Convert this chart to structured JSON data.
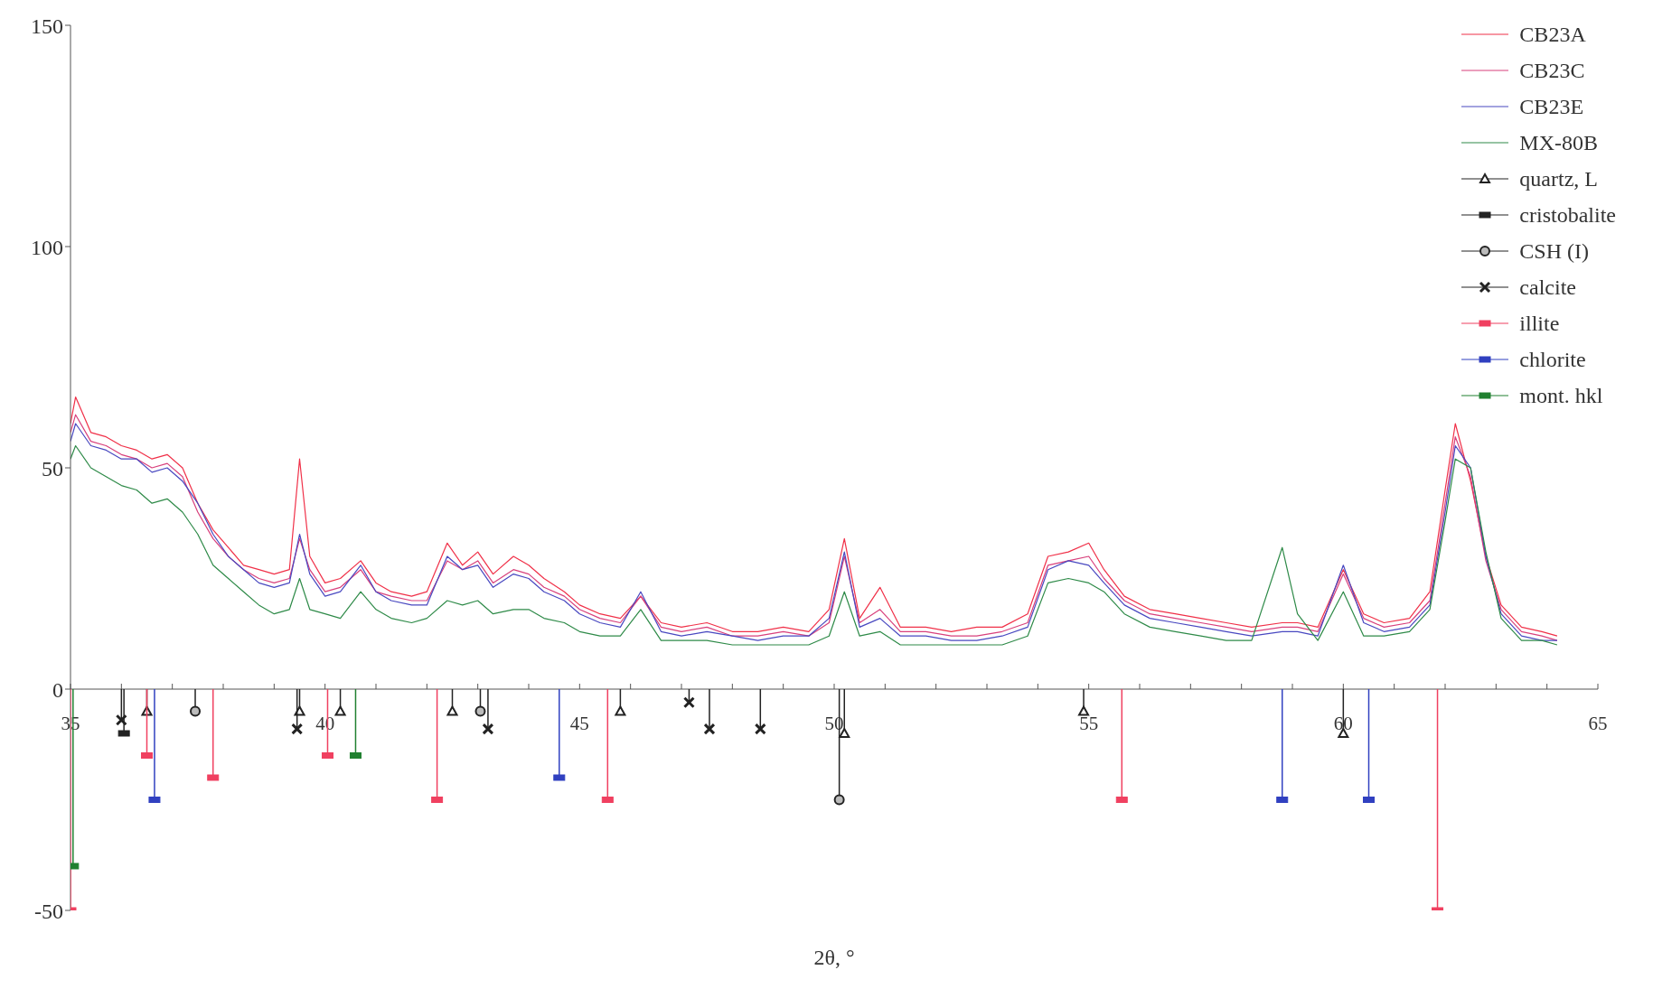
{
  "chart_data": {
    "type": "line",
    "xlabel": "2θ, °",
    "xlim": [
      35,
      65
    ],
    "xticks": [
      35,
      {
        "value": 36,
        "label": null
      },
      {
        "value": 37,
        "label": null
      },
      {
        "value": 38,
        "label": null
      },
      {
        "value": 39,
        "label": null
      },
      40,
      {
        "value": 41,
        "label": null
      },
      {
        "value": 42,
        "label": null
      },
      {
        "value": 43,
        "label": null
      },
      {
        "value": 44,
        "label": null
      },
      45,
      {
        "value": 46,
        "label": null
      },
      {
        "value": 47,
        "label": null
      },
      {
        "value": 48,
        "label": null
      },
      {
        "value": 49,
        "label": null
      },
      50,
      {
        "value": 51,
        "label": null
      },
      {
        "value": 52,
        "label": null
      },
      {
        "value": 53,
        "label": null
      },
      {
        "value": 54,
        "label": null
      },
      55,
      {
        "value": 56,
        "label": null
      },
      {
        "value": 57,
        "label": null
      },
      {
        "value": 58,
        "label": null
      },
      {
        "value": 59,
        "label": null
      },
      60,
      {
        "value": 61,
        "label": null
      },
      {
        "value": 62,
        "label": null
      },
      {
        "value": 63,
        "label": null
      },
      {
        "value": 64,
        "label": null
      },
      65
    ],
    "ylim": [
      -50,
      150
    ],
    "yticks": [
      -50,
      0,
      50,
      100,
      150
    ],
    "grid": false,
    "legend": "top right",
    "line_style": "solid",
    "x": [
      35,
      35.1,
      35.4,
      35.7,
      36,
      36.3,
      36.6,
      36.9,
      37.2,
      37.5,
      37.8,
      38.1,
      38.4,
      38.7,
      39,
      39.3,
      39.5,
      39.7,
      40,
      40.3,
      40.7,
      41,
      41.3,
      41.7,
      42,
      42.4,
      42.7,
      43,
      43.3,
      43.7,
      44,
      44.3,
      44.7,
      45,
      45.4,
      45.8,
      46.2,
      46.6,
      47,
      47.5,
      48,
      48.5,
      49,
      49.5,
      49.9,
      50.2,
      50.5,
      50.9,
      51.3,
      51.8,
      52.3,
      52.8,
      53.3,
      53.8,
      54.2,
      54.6,
      55,
      55.3,
      55.7,
      56.2,
      56.7,
      57.2,
      57.7,
      58.2,
      58.8,
      59.1,
      59.5,
      60,
      60.4,
      60.8,
      61.3,
      61.7,
      62,
      62.2,
      62.5,
      62.8,
      63.1,
      63.5,
      63.9,
      64.2
    ],
    "series": [
      {
        "name": "CB23A",
        "color": "#f03048",
        "values": [
          60,
          66,
          58,
          57,
          55,
          54,
          52,
          53,
          50,
          42,
          36,
          32,
          28,
          27,
          26,
          27,
          52,
          30,
          24,
          25,
          29,
          24,
          22,
          21,
          22,
          33,
          28,
          31,
          26,
          30,
          28,
          25,
          22,
          19,
          17,
          16,
          21,
          15,
          14,
          15,
          13,
          13,
          14,
          13,
          18,
          34,
          16,
          23,
          14,
          14,
          13,
          14,
          14,
          17,
          30,
          31,
          33,
          27,
          21,
          18,
          17,
          16,
          15,
          14,
          15,
          15,
          14,
          27,
          17,
          15,
          16,
          22,
          45,
          60,
          47,
          30,
          19,
          14,
          13,
          12
        ]
      },
      {
        "name": "CB23C",
        "color": "#d8407c",
        "values": [
          58,
          62,
          56,
          55,
          53,
          52,
          50,
          51,
          48,
          40,
          34,
          30,
          27,
          25,
          24,
          25,
          34,
          27,
          22,
          23,
          27,
          22,
          21,
          20,
          20,
          29,
          27,
          29,
          24,
          27,
          26,
          23,
          21,
          18,
          16,
          15,
          21,
          14,
          13,
          14,
          12,
          12,
          13,
          12,
          15,
          30,
          15,
          18,
          13,
          13,
          12,
          12,
          13,
          15,
          28,
          29,
          30,
          25,
          20,
          17,
          16,
          15,
          14,
          13,
          14,
          14,
          13,
          26,
          16,
          14,
          15,
          20,
          42,
          57,
          48,
          29,
          18,
          13,
          12,
          11
        ]
      },
      {
        "name": "CB23E",
        "color": "#4848c0",
        "values": [
          56,
          60,
          55,
          54,
          52,
          52,
          49,
          50,
          47,
          42,
          35,
          30,
          27,
          24,
          23,
          24,
          35,
          26,
          21,
          22,
          28,
          22,
          20,
          19,
          19,
          30,
          27,
          28,
          23,
          26,
          25,
          22,
          20,
          17,
          15,
          14,
          22,
          13,
          12,
          13,
          12,
          11,
          12,
          12,
          16,
          31,
          14,
          16,
          12,
          12,
          11,
          11,
          12,
          14,
          27,
          29,
          28,
          24,
          19,
          16,
          15,
          14,
          13,
          12,
          13,
          13,
          12,
          28,
          15,
          13,
          14,
          19,
          40,
          55,
          50,
          30,
          17,
          12,
          11,
          11
        ]
      },
      {
        "name": "MX-80B",
        "color": "#2e8a48",
        "values": [
          52,
          55,
          50,
          48,
          46,
          45,
          42,
          43,
          40,
          35,
          28,
          25,
          22,
          19,
          17,
          18,
          25,
          18,
          17,
          16,
          22,
          18,
          16,
          15,
          16,
          20,
          19,
          20,
          17,
          18,
          18,
          16,
          15,
          13,
          12,
          12,
          18,
          11,
          11,
          11,
          10,
          10,
          10,
          10,
          12,
          22,
          12,
          13,
          10,
          10,
          10,
          10,
          10,
          12,
          24,
          25,
          24,
          22,
          17,
          14,
          13,
          12,
          11,
          11,
          32,
          17,
          11,
          22,
          12,
          12,
          13,
          18,
          38,
          52,
          50,
          31,
          16,
          11,
          11,
          10
        ]
      },
      {
        "name": "quartz, L",
        "type": "lollipop",
        "marker": "triangle",
        "color": "#222222",
        "x": [
          36.5,
          39.5,
          40.3,
          42.5,
          45.8,
          50.2,
          54.9,
          60.0
        ],
        "values": [
          -5,
          -5,
          -5,
          -5,
          -5,
          -10,
          -5,
          -10
        ]
      },
      {
        "name": "cristobalite",
        "type": "lollipop",
        "marker": "square",
        "color": "#222222",
        "x": [
          36.05
        ],
        "values": [
          -10
        ]
      },
      {
        "name": "CSH (I)",
        "type": "lollipop",
        "marker": "circle",
        "color": "#222222",
        "x": [
          37.45,
          43.05,
          50.1
        ],
        "values": [
          -5,
          -5,
          -25
        ]
      },
      {
        "name": "calcite",
        "type": "lollipop",
        "marker": "cross",
        "color": "#222222",
        "x": [
          36.0,
          39.45,
          43.2,
          47.15,
          47.55,
          48.55
        ],
        "values": [
          -7,
          -9,
          -9,
          -3,
          -9,
          -9
        ]
      },
      {
        "name": "illite",
        "type": "lollipop",
        "marker": "square",
        "color": "#f04060",
        "x": [
          35.0,
          36.5,
          37.8,
          40.05,
          42.2,
          45.55,
          55.65,
          61.85
        ],
        "values": [
          -50,
          -15,
          -20,
          -15,
          -25,
          -25,
          -25,
          -50
        ]
      },
      {
        "name": "chlorite",
        "type": "lollipop",
        "marker": "square",
        "color": "#3040c0",
        "x": [
          36.65,
          44.6,
          58.8,
          60.5
        ],
        "values": [
          -25,
          -20,
          -25,
          -25
        ]
      },
      {
        "name": "mont. hkl",
        "type": "lollipop",
        "marker": "square",
        "color": "#208030",
        "x": [
          35.05,
          40.6
        ],
        "values": [
          -40,
          -15
        ]
      }
    ]
  }
}
